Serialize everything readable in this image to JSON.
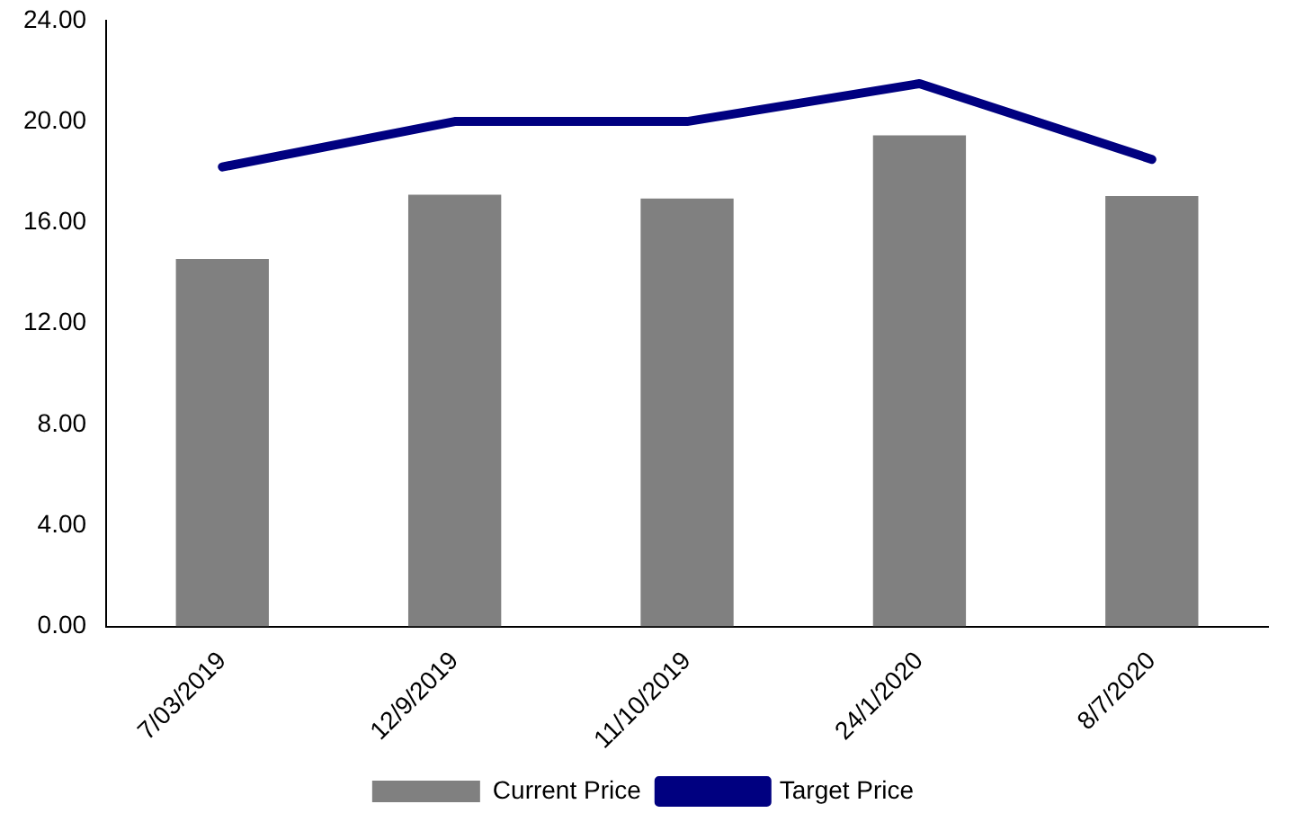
{
  "chart_data": {
    "type": "bar",
    "categories": [
      "7/03/2019",
      "12/9/2019",
      "11/10/2019",
      "24/1/2020",
      "8/7/2020"
    ],
    "series": [
      {
        "name": "Current Price",
        "color": "#808080",
        "values": [
          14.55,
          17.1,
          16.95,
          19.45,
          17.05
        ]
      },
      {
        "name": "Target Price",
        "type": "line",
        "color": "#000080",
        "values": [
          18.2,
          20.0,
          20.0,
          21.5,
          18.5
        ]
      }
    ],
    "ylim": [
      0,
      24
    ],
    "yticks": [
      {
        "value": 0,
        "label": "0.00"
      },
      {
        "value": 4,
        "label": "4.00"
      },
      {
        "value": 8,
        "label": "8.00"
      },
      {
        "value": 12,
        "label": "12.00"
      },
      {
        "value": 16,
        "label": "16.00"
      },
      {
        "value": 20,
        "label": "20.00"
      },
      {
        "value": 24,
        "label": "24.00"
      }
    ],
    "grid": false,
    "legend": "bottom",
    "marker": "none"
  }
}
